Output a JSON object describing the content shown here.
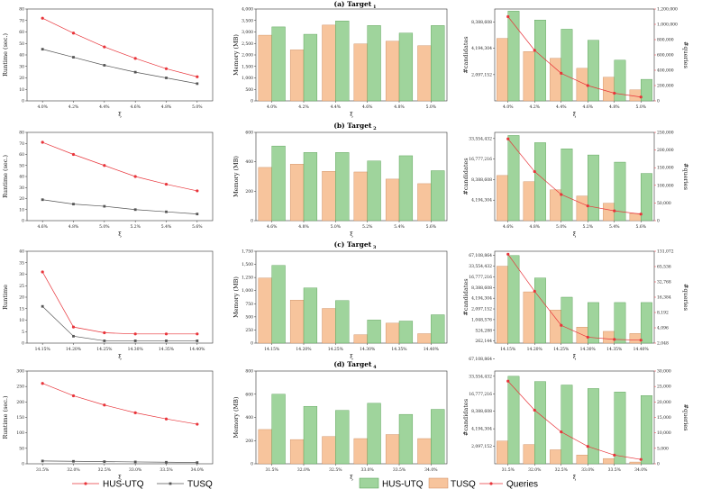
{
  "colors": {
    "hus_utq": "#9fd49c",
    "hus_utq_stroke": "#4f9a4c",
    "tusq": "#f7c49c",
    "tusq_stroke": "#c9875a",
    "queries": "#e8343a",
    "runtime_hus": "#e8343a",
    "runtime_tusq": "#555555"
  },
  "legend": {
    "left": [
      {
        "label": "HUS-UTQ"
      },
      {
        "label": "TUSQ"
      }
    ],
    "right": [
      {
        "label": "HUS-UTQ"
      },
      {
        "label": "TUSQ"
      },
      {
        "label": "Queries"
      }
    ]
  },
  "chart_data": [
    {
      "row": 0,
      "title": "(a) Target",
      "title_sub": "1",
      "xlabel": "ξ",
      "x": [
        "4.0%",
        "4.2%",
        "4.4%",
        "4.6%",
        "4.8%",
        "5.0%"
      ],
      "runtime": {
        "type": "line",
        "ylabel": "Runtime (sec.)",
        "yticks": [
          "0",
          "10",
          "20",
          "30",
          "40",
          "50",
          "60",
          "70",
          "80"
        ],
        "ylim": [
          0,
          80
        ],
        "series": [
          {
            "name": "HUS-UTQ",
            "values": [
              72,
              59,
              47,
              37,
              28,
              21
            ]
          },
          {
            "name": "TUSQ",
            "values": [
              45,
              38,
              31,
              25,
              20,
              15
            ]
          }
        ]
      },
      "memory": {
        "type": "bar",
        "ylabel": "Memory (MB)",
        "yticks": [
          "0",
          "500",
          "1,000",
          "1,500",
          "2,000",
          "2,500",
          "3,000",
          "3,500",
          "4,000"
        ],
        "ylim": [
          0,
          4000
        ],
        "series": [
          {
            "name": "TUSQ",
            "values": [
              2860,
              2220,
              3300,
              2480,
              2600,
              2400
            ]
          },
          {
            "name": "HUS-UTQ",
            "values": [
              3220,
              2900,
              3480,
              3280,
              2950,
              3280
            ]
          }
        ]
      },
      "candidates": {
        "type": "bar+line",
        "ylabel": "#candidates",
        "ylabel_right": "#queries",
        "yticks": [
          "2,097,152",
          "4,194,304",
          "8,388,608"
        ],
        "ylim": [
          0,
          3.5
        ],
        "yticks_right": [
          "0",
          "200,000",
          "400,000",
          "600,000",
          "800,000",
          "1,000,000",
          "1,200,000"
        ],
        "ylim_right": [
          0,
          1200000
        ],
        "series": [
          {
            "name": "TUSQ",
            "values": [
              2.38,
              1.88,
              1.62,
              1.24,
              0.9,
              0.42
            ]
          },
          {
            "name": "HUS-UTQ",
            "values": [
              3.42,
              3.08,
              2.73,
              2.31,
              1.55,
              0.82
            ]
          },
          {
            "name": "Queries",
            "values": [
              1100000,
              660000,
              360000,
              200000,
              100000,
              50000
            ]
          }
        ]
      }
    },
    {
      "row": 1,
      "title": "(b) Target",
      "title_sub": "2",
      "xlabel": "ξ",
      "x": [
        "4.6%",
        "4.8%",
        "5.0%",
        "5.2%",
        "5.4%",
        "5.6%"
      ],
      "runtime": {
        "type": "line",
        "ylabel": "Runtime (sec.)",
        "yticks": [
          "0",
          "10",
          "20",
          "30",
          "40",
          "50",
          "60",
          "70",
          "80"
        ],
        "ylim": [
          0,
          80
        ],
        "series": [
          {
            "name": "HUS-UTQ",
            "values": [
              71,
              60,
              50,
              40,
              33,
              27
            ]
          },
          {
            "name": "TUSQ",
            "values": [
              19,
              15,
              13,
              10,
              8,
              6
            ]
          }
        ]
      },
      "memory": {
        "type": "bar",
        "ylabel": "Memory (MB)",
        "yticks": [
          "0",
          "200",
          "400",
          "600"
        ],
        "ylim": [
          0,
          680
        ],
        "series": [
          {
            "name": "TUSQ",
            "values": [
              410,
              435,
              380,
              375,
              320,
              285
            ]
          },
          {
            "name": "HUS-UTQ",
            "values": [
              575,
              525,
              525,
              460,
              500,
              385
            ]
          }
        ]
      },
      "candidates": {
        "type": "bar+line",
        "ylabel": "#candidates",
        "ylabel_right": "#queries",
        "yticks": [
          "4,194,304",
          "8,388,608",
          "16,777,216",
          "33,554,432"
        ],
        "ylim": [
          0,
          4.3
        ],
        "yticks_right": [
          "0",
          "50,000",
          "100,000",
          "150,000",
          "200,000",
          "250,000"
        ],
        "ylim_right": [
          0,
          270000
        ],
        "series": [
          {
            "name": "TUSQ",
            "values": [
              2.2,
              1.9,
              1.5,
              1.2,
              0.85,
              0.35
            ]
          },
          {
            "name": "HUS-UTQ",
            "values": [
              4.15,
              3.8,
              3.5,
              3.2,
              2.85,
              2.3
            ]
          },
          {
            "name": "Queries",
            "values": [
              250000,
              150000,
              80000,
              45000,
              30000,
              20000
            ]
          }
        ]
      }
    },
    {
      "row": 2,
      "title": "(c) Target",
      "title_sub": "3",
      "xlabel": "ξ",
      "x": [
        "14.15%",
        "14.20%",
        "14.25%",
        "14.30%",
        "14.35%",
        "14.40%"
      ],
      "runtime": {
        "type": "line",
        "ylabel": "Runtime",
        "yticks": [
          "0",
          "5",
          "10",
          "15",
          "20",
          "25",
          "30",
          "35",
          "40"
        ],
        "ylim": [
          0,
          40
        ],
        "series": [
          {
            "name": "HUS-UTQ",
            "values": [
              31,
              7,
              4.5,
              4,
              4,
              4
            ]
          },
          {
            "name": "TUSQ",
            "values": [
              16,
              3,
              1,
              1,
              1,
              1
            ]
          }
        ]
      },
      "memory": {
        "type": "bar",
        "ylabel": "Memory (MB)",
        "yticks": [
          "0",
          "250",
          "500",
          "750",
          "1,000",
          "1,250",
          "1,500",
          "1,750"
        ],
        "ylim": [
          0,
          1750
        ],
        "series": [
          {
            "name": "TUSQ",
            "values": [
              1240,
              820,
              660,
              160,
              380,
              180
            ]
          },
          {
            "name": "HUS-UTQ",
            "values": [
              1480,
              1050,
              810,
              440,
              420,
              540
            ]
          }
        ]
      },
      "candidates": {
        "type": "bar+line",
        "ylabel": "#candidates",
        "ylabel_right": "#queries",
        "yticks": [
          "262,144",
          "524,288",
          "1,048,576",
          "2,097,152",
          "4,194,304",
          "8,388,608",
          "16,777,216",
          "33,554,432",
          "67,108,864"
        ],
        "ylim": [
          -0.2,
          8.4
        ],
        "yticks_right": [
          "2,048",
          "4,096",
          "8,192",
          "16,384",
          "32,768",
          "65,536",
          "131,072"
        ],
        "ylim_right": [
          0,
          6.2
        ],
        "series": [
          {
            "name": "TUSQ",
            "values": [
              7.0,
              4.6,
              2.9,
              1.3,
              0.9,
              0.7
            ]
          },
          {
            "name": "HUS-UTQ",
            "values": [
              8.0,
              5.9,
              4.1,
              3.6,
              3.6,
              3.6
            ]
          },
          {
            "name": "Queries",
            "values": [
              6.0,
              3.5,
              1.2,
              0.4,
              0.25,
              0.2
            ]
          }
        ]
      }
    },
    {
      "row": 3,
      "title": "(d) Target",
      "title_sub": "4",
      "xlabel": "ξ",
      "x": [
        "31.5%",
        "32.0%",
        "32.5%",
        "33.0%",
        "33.5%",
        "34.0%"
      ],
      "runtime": {
        "type": "line",
        "ylabel": "Runtime (sec.)",
        "yticks": [
          "0",
          "50",
          "100",
          "150",
          "200",
          "250",
          "300"
        ],
        "ylim": [
          0,
          300
        ],
        "series": [
          {
            "name": "HUS-UTQ",
            "values": [
              260,
              220,
              190,
              165,
              145,
              128
            ]
          },
          {
            "name": "TUSQ",
            "values": [
              9,
              8,
              7,
              6,
              5,
              4
            ]
          }
        ]
      },
      "memory": {
        "type": "bar",
        "ylabel": "Memory (MB)",
        "yticks": [
          "0",
          "200",
          "400",
          "600",
          "800"
        ],
        "ylim": [
          0,
          920
        ],
        "series": [
          {
            "name": "TUSQ",
            "values": [
              340,
              240,
              270,
              250,
              290,
              250
            ]
          },
          {
            "name": "HUS-UTQ",
            "values": [
              690,
              570,
              530,
              600,
              490,
              540
            ]
          }
        ]
      },
      "candidates": {
        "type": "bar+line",
        "ylabel": "#candidates",
        "ylabel_right": "#queries",
        "yticks": [
          "2,097,152",
          "4,194,304",
          "8,388,608",
          "16,777,216",
          "33,554,432",
          "67,108,864"
        ],
        "ylim": [
          0,
          5.3
        ],
        "yticks_right": [
          "0",
          "5,000",
          "10,000",
          "15,000",
          "20,000",
          "25,000",
          "30,000"
        ],
        "ylim_right": [
          0,
          32000
        ],
        "series": [
          {
            "name": "TUSQ",
            "values": [
              1.3,
              1.1,
              0.8,
              0.5,
              0.3,
              0.1
            ]
          },
          {
            "name": "HUS-UTQ",
            "values": [
              5.0,
              4.7,
              4.5,
              4.3,
              4.1,
              3.9
            ]
          },
          {
            "name": "Queries",
            "values": [
              28500,
              18500,
              11000,
              6000,
              3000,
              1500
            ]
          }
        ]
      }
    }
  ]
}
